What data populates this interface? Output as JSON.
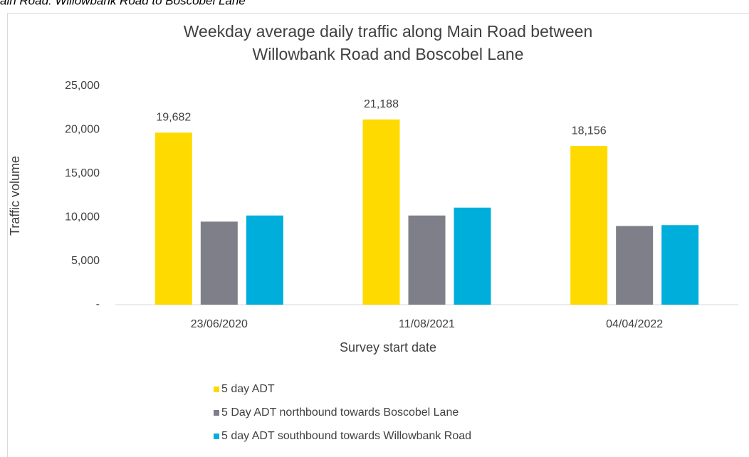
{
  "caption": "ain Road: Willowbank Road to Boscobel Lane",
  "chart_data": {
    "type": "bar",
    "title": [
      "Weekday average daily traffic along Main Road between",
      "Willowbank Road and Boscobel Lane"
    ],
    "x_label": "Survey start date",
    "y_label": "Traffic volume",
    "categories": [
      "23/06/2020",
      "11/08/2021",
      "04/04/2022"
    ],
    "series": [
      {
        "name": "5 day ADT",
        "color": "#ffda00",
        "values": [
          19682,
          21188,
          18156
        ],
        "value_labels": [
          "19,682",
          "21,188",
          "18,156"
        ]
      },
      {
        "name": "5 Day ADT northbound towards Boscobel Lane",
        "color": "#7f7f8a",
        "values": [
          9500,
          10200,
          9000
        ]
      },
      {
        "name": "5 day ADT southbound towards Willowbank Road",
        "color": "#00aedb",
        "values": [
          10200,
          11100,
          9100
        ]
      }
    ],
    "ylim": [
      0,
      25000
    ],
    "yticks": [
      {
        "value": 0,
        "label": "-"
      },
      {
        "value": 5000,
        "label": "5,000"
      },
      {
        "value": 10000,
        "label": "10,000"
      },
      {
        "value": 15000,
        "label": "15,000"
      },
      {
        "value": 20000,
        "label": "20,000"
      },
      {
        "value": 25000,
        "label": "25,000"
      }
    ],
    "grid": false,
    "legend": "bottom"
  }
}
